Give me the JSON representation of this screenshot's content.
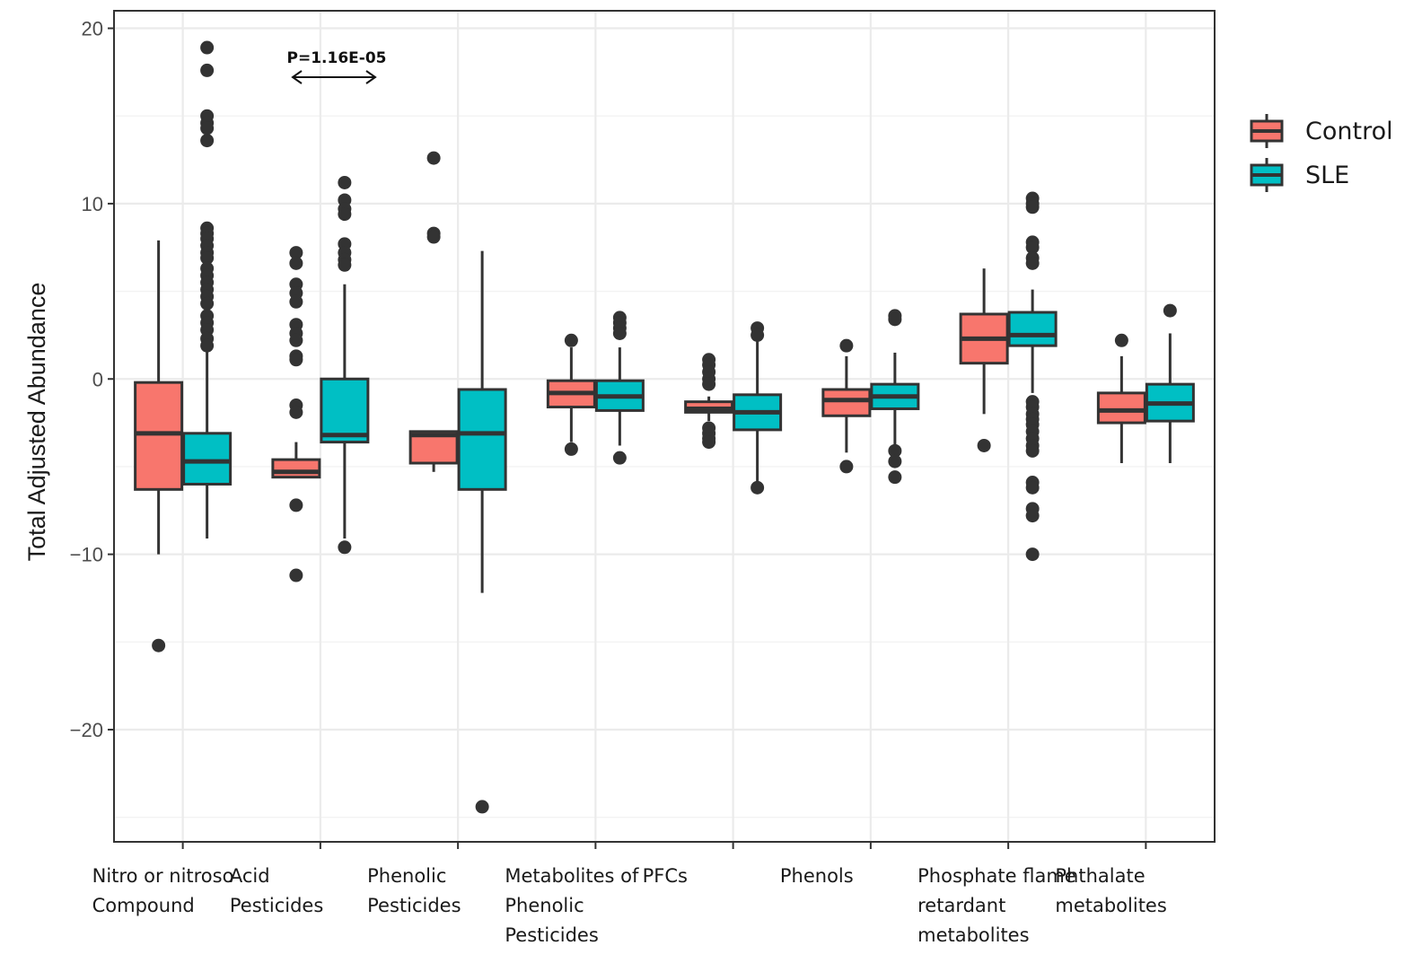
{
  "chart_data": {
    "type": "boxplot",
    "title": "",
    "xlabel": "",
    "ylabel": "Total Adjusted Abundance",
    "ylim": [
      -26.4,
      21.0
    ],
    "yticks": [
      20,
      10,
      0,
      -10,
      -20
    ],
    "ytick_labels": [
      "20",
      "10",
      "0",
      "−10",
      "−20"
    ],
    "grid": true,
    "legend": {
      "placement": "right",
      "entries": [
        {
          "name": "Control",
          "color": "#F8766D"
        },
        {
          "name": "SLE",
          "color": "#00BFC4"
        }
      ]
    },
    "categories": [
      {
        "label_lines": [
          "Nitro or nitroso",
          "Compound"
        ]
      },
      {
        "label_lines": [
          "Acid",
          "Pesticides"
        ]
      },
      {
        "label_lines": [
          "Phenolic",
          "Pesticides"
        ]
      },
      {
        "label_lines": [
          "Metabolites of",
          "Phenolic",
          "Pesticides"
        ]
      },
      {
        "label_lines": [
          "PFCs"
        ]
      },
      {
        "label_lines": [
          "Phenols"
        ]
      },
      {
        "label_lines": [
          "Phosphate flame",
          "retardant",
          "metabolites"
        ]
      },
      {
        "label_lines": [
          "Phthalate",
          "metabolites"
        ]
      }
    ],
    "series": [
      {
        "name": "Control",
        "color": "#F8766D",
        "boxes": [
          {
            "whisker_low": -10.0,
            "q1": -6.3,
            "median": -3.1,
            "q3": -0.2,
            "whisker_high": 7.9,
            "outliers": [
              -15.2
            ]
          },
          {
            "whisker_low": -5.6,
            "q1": -5.6,
            "median": -5.3,
            "q3": -4.6,
            "whisker_high": -3.6,
            "outliers": [
              7.2,
              6.6,
              5.4,
              4.9,
              4.4,
              3.1,
              2.6,
              2.2,
              1.3,
              1.1,
              -1.5,
              -1.9,
              -7.2,
              -11.2
            ]
          },
          {
            "whisker_low": -5.3,
            "q1": -4.8,
            "median": -3.2,
            "q3": -3.0,
            "whisker_high": -3.0,
            "outliers": [
              12.6,
              8.3,
              8.1
            ]
          },
          {
            "whisker_low": -3.6,
            "q1": -1.6,
            "median": -0.8,
            "q3": -0.1,
            "whisker_high": 1.8,
            "outliers": [
              2.2,
              -4.0
            ]
          },
          {
            "whisker_low": -2.4,
            "q1": -1.9,
            "median": -1.7,
            "q3": -1.3,
            "whisker_high": -1.0,
            "outliers": [
              1.1,
              0.8,
              0.4,
              0.0,
              -0.3,
              -2.8,
              -3.1,
              -3.4,
              -3.6
            ]
          },
          {
            "whisker_low": -4.2,
            "q1": -2.1,
            "median": -1.2,
            "q3": -0.6,
            "whisker_high": 1.3,
            "outliers": [
              1.9,
              -5.0
            ]
          },
          {
            "whisker_low": -2.0,
            "q1": 0.9,
            "median": 2.3,
            "q3": 3.7,
            "whisker_high": 6.3,
            "outliers": [
              -3.8
            ]
          },
          {
            "whisker_low": -4.8,
            "q1": -2.5,
            "median": -1.8,
            "q3": -0.8,
            "whisker_high": 1.3,
            "outliers": [
              2.2
            ]
          }
        ]
      },
      {
        "name": "SLE",
        "color": "#00BFC4",
        "boxes": [
          {
            "whisker_low": -9.1,
            "q1": -6.0,
            "median": -4.7,
            "q3": -3.1,
            "whisker_high": 1.8,
            "outliers": [
              18.9,
              17.6,
              15.0,
              14.6,
              14.3,
              13.6,
              8.6,
              8.3,
              8.0,
              7.6,
              7.2,
              6.9,
              6.3,
              5.9,
              5.5,
              5.1,
              4.7,
              4.3,
              3.6,
              3.2,
              2.8,
              2.3,
              1.9
            ]
          },
          {
            "whisker_low": -9.1,
            "q1": -3.6,
            "median": -3.2,
            "q3": 0.0,
            "whisker_high": 5.4,
            "outliers": [
              11.2,
              10.2,
              9.7,
              9.4,
              7.7,
              7.2,
              6.8,
              6.5,
              -9.6
            ]
          },
          {
            "whisker_low": -12.2,
            "q1": -6.3,
            "median": -3.1,
            "q3": -0.6,
            "whisker_high": 7.3,
            "outliers": [
              -24.4
            ]
          },
          {
            "whisker_low": -3.8,
            "q1": -1.8,
            "median": -1.0,
            "q3": -0.1,
            "whisker_high": 1.8,
            "outliers": [
              3.5,
              3.2,
              2.9,
              2.6,
              -4.5
            ]
          },
          {
            "whisker_low": -6.0,
            "q1": -2.9,
            "median": -1.9,
            "q3": -0.9,
            "whisker_high": 2.3,
            "outliers": [
              2.9,
              2.5,
              -6.2
            ]
          },
          {
            "whisker_low": -3.8,
            "q1": -1.7,
            "median": -1.0,
            "q3": -0.3,
            "whisker_high": 1.5,
            "outliers": [
              3.6,
              3.4,
              -4.1,
              -4.7,
              -5.6
            ]
          },
          {
            "whisker_low": -0.8,
            "q1": 1.9,
            "median": 2.5,
            "q3": 3.8,
            "whisker_high": 5.1,
            "outliers": [
              10.3,
              10.0,
              9.8,
              7.8,
              7.5,
              6.9,
              6.6,
              -1.3,
              -1.6,
              -2.0,
              -2.3,
              -2.6,
              -3.0,
              -3.4,
              -3.8,
              -4.1,
              -5.9,
              -6.2,
              -7.4,
              -7.8,
              -10.0
            ]
          },
          {
            "whisker_low": -4.8,
            "q1": -2.4,
            "median": -1.4,
            "q3": -0.3,
            "whisker_high": 2.6,
            "outliers": [
              3.9
            ]
          }
        ]
      }
    ],
    "annotations": [
      {
        "text": "P=1.16E-05",
        "type": "double-arrow",
        "category_index": 1
      }
    ]
  }
}
